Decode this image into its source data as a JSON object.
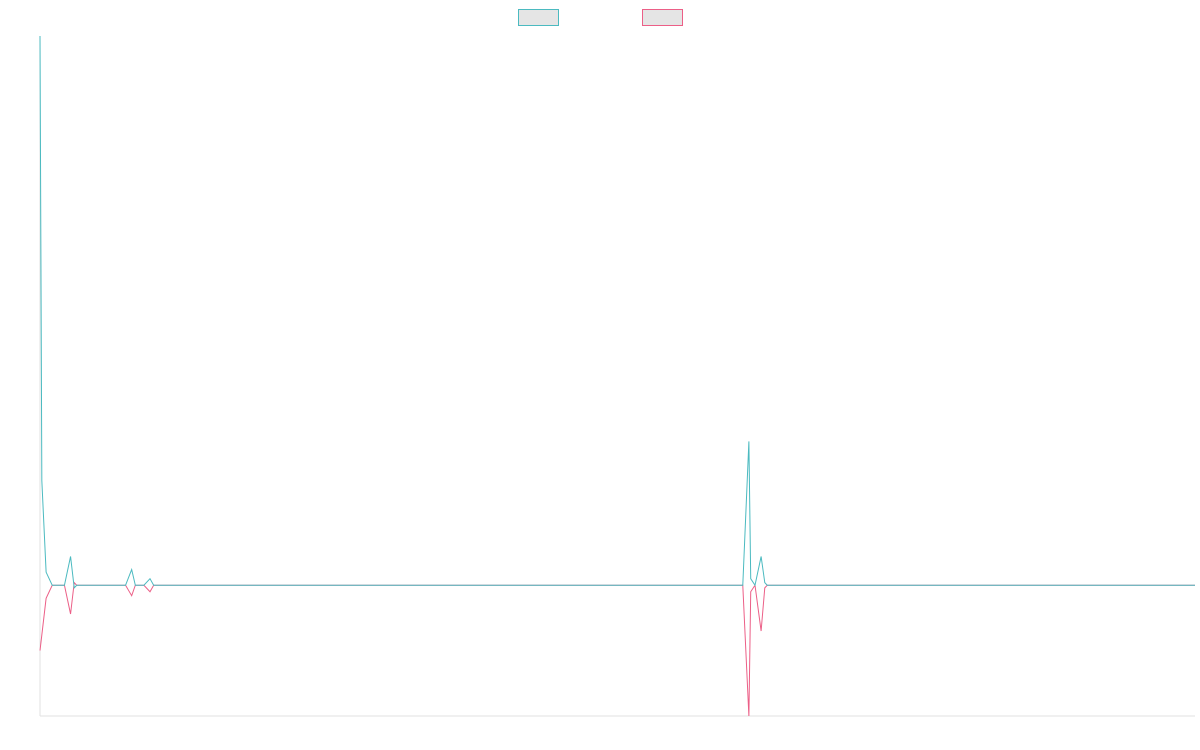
{
  "chart_data": {
    "type": "line",
    "title": "",
    "xlabel": "",
    "ylabel": "",
    "legend_position": "top-center",
    "grid": false,
    "xlim": [
      0,
      189
    ],
    "ylim": [
      -1.0,
      4.2
    ],
    "series": [
      {
        "color": "#4bbac0",
        "fill": "#e5e5e5",
        "points": [
          [
            0,
            4.2
          ],
          [
            0.3,
            0.8
          ],
          [
            1,
            0.1
          ],
          [
            2,
            0
          ],
          [
            4,
            0
          ],
          [
            5,
            0.22
          ],
          [
            5.6,
            -0.02
          ],
          [
            6,
            0
          ],
          [
            14,
            0
          ],
          [
            15,
            0.12
          ],
          [
            15.6,
            0
          ],
          [
            17,
            0
          ],
          [
            18,
            0.05
          ],
          [
            18.6,
            0
          ],
          [
            115,
            0
          ],
          [
            116,
            1.1
          ],
          [
            116.3,
            0.05
          ],
          [
            117,
            0
          ],
          [
            118,
            0.22
          ],
          [
            118.6,
            0.02
          ],
          [
            119,
            0
          ],
          [
            189,
            0
          ]
        ]
      },
      {
        "color": "#ec5f87",
        "fill": "#e5e5e5",
        "points": [
          [
            0,
            -0.5
          ],
          [
            1,
            -0.1
          ],
          [
            2,
            0
          ],
          [
            4,
            0
          ],
          [
            5,
            -0.22
          ],
          [
            5.6,
            0.02
          ],
          [
            6,
            0
          ],
          [
            14,
            0
          ],
          [
            15,
            -0.08
          ],
          [
            15.6,
            0
          ],
          [
            17,
            0
          ],
          [
            18,
            -0.05
          ],
          [
            18.6,
            0
          ],
          [
            115,
            0
          ],
          [
            116,
            -1.0
          ],
          [
            116.3,
            -0.05
          ],
          [
            117,
            0
          ],
          [
            118,
            -0.35
          ],
          [
            118.6,
            -0.02
          ],
          [
            119,
            0
          ],
          [
            189,
            0
          ]
        ]
      }
    ]
  }
}
